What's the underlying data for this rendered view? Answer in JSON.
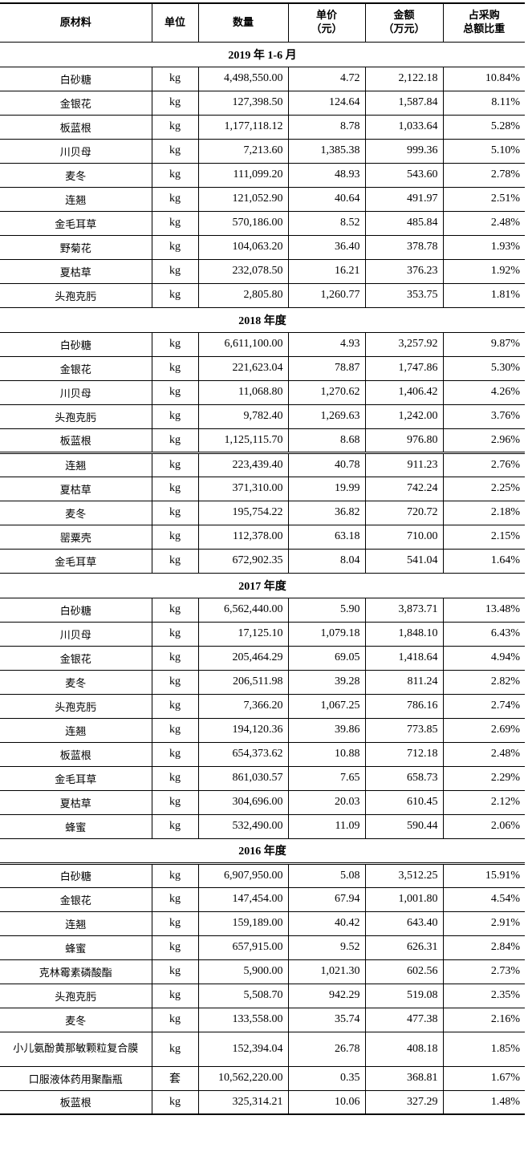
{
  "header": {
    "material": "原材料",
    "unit": "单位",
    "quantity": "数量",
    "price_line1": "单价",
    "price_line2": "（元）",
    "amount_line1": "金额",
    "amount_line2": "（万元）",
    "ratio_line1": "占采购",
    "ratio_line2": "总额比重"
  },
  "sections": [
    {
      "title": "2019 年 1-6 月",
      "rows": [
        {
          "name": "白砂糖",
          "unit": "kg",
          "quantity": "4,498,550.00",
          "price": "4.72",
          "amount": "2,122.18",
          "ratio": "10.84%"
        },
        {
          "name": "金银花",
          "unit": "kg",
          "quantity": "127,398.50",
          "price": "124.64",
          "amount": "1,587.84",
          "ratio": "8.11%"
        },
        {
          "name": "板蓝根",
          "unit": "kg",
          "quantity": "1,177,118.12",
          "price": "8.78",
          "amount": "1,033.64",
          "ratio": "5.28%"
        },
        {
          "name": "川贝母",
          "unit": "kg",
          "quantity": "7,213.60",
          "price": "1,385.38",
          "amount": "999.36",
          "ratio": "5.10%"
        },
        {
          "name": "麦冬",
          "unit": "kg",
          "quantity": "111,099.20",
          "price": "48.93",
          "amount": "543.60",
          "ratio": "2.78%"
        },
        {
          "name": "连翘",
          "unit": "kg",
          "quantity": "121,052.90",
          "price": "40.64",
          "amount": "491.97",
          "ratio": "2.51%"
        },
        {
          "name": "金毛耳草",
          "unit": "kg",
          "quantity": "570,186.00",
          "price": "8.52",
          "amount": "485.84",
          "ratio": "2.48%"
        },
        {
          "name": "野菊花",
          "unit": "kg",
          "quantity": "104,063.20",
          "price": "36.40",
          "amount": "378.78",
          "ratio": "1.93%"
        },
        {
          "name": "夏枯草",
          "unit": "kg",
          "quantity": "232,078.50",
          "price": "16.21",
          "amount": "376.23",
          "ratio": "1.92%"
        },
        {
          "name": "头孢克肟",
          "unit": "kg",
          "quantity": "2,805.80",
          "price": "1,260.77",
          "amount": "353.75",
          "ratio": "1.81%"
        }
      ]
    },
    {
      "title": "2018 年度",
      "rows": [
        {
          "name": "白砂糖",
          "unit": "kg",
          "quantity": "6,611,100.00",
          "price": "4.93",
          "amount": "3,257.92",
          "ratio": "9.87%"
        },
        {
          "name": "金银花",
          "unit": "kg",
          "quantity": "221,623.04",
          "price": "78.87",
          "amount": "1,747.86",
          "ratio": "5.30%"
        },
        {
          "name": "川贝母",
          "unit": "kg",
          "quantity": "11,068.80",
          "price": "1,270.62",
          "amount": "1,406.42",
          "ratio": "4.26%"
        },
        {
          "name": "头孢克肟",
          "unit": "kg",
          "quantity": "9,782.40",
          "price": "1,269.63",
          "amount": "1,242.00",
          "ratio": "3.76%"
        },
        {
          "name": "板蓝根",
          "unit": "kg",
          "quantity": "1,125,115.70",
          "price": "8.68",
          "amount": "976.80",
          "ratio": "2.96%"
        },
        {
          "name": "连翘",
          "unit": "kg",
          "quantity": "223,439.40",
          "price": "40.78",
          "amount": "911.23",
          "ratio": "2.76%"
        },
        {
          "name": "夏枯草",
          "unit": "kg",
          "quantity": "371,310.00",
          "price": "19.99",
          "amount": "742.24",
          "ratio": "2.25%"
        },
        {
          "name": "麦冬",
          "unit": "kg",
          "quantity": "195,754.22",
          "price": "36.82",
          "amount": "720.72",
          "ratio": "2.18%"
        },
        {
          "name": "罂粟壳",
          "unit": "kg",
          "quantity": "112,378.00",
          "price": "63.18",
          "amount": "710.00",
          "ratio": "2.15%"
        },
        {
          "name": "金毛耳草",
          "unit": "kg",
          "quantity": "672,902.35",
          "price": "8.04",
          "amount": "541.04",
          "ratio": "1.64%"
        }
      ]
    },
    {
      "title": "2017 年度",
      "rows": [
        {
          "name": "白砂糖",
          "unit": "kg",
          "quantity": "6,562,440.00",
          "price": "5.90",
          "amount": "3,873.71",
          "ratio": "13.48%"
        },
        {
          "name": "川贝母",
          "unit": "kg",
          "quantity": "17,125.10",
          "price": "1,079.18",
          "amount": "1,848.10",
          "ratio": "6.43%"
        },
        {
          "name": "金银花",
          "unit": "kg",
          "quantity": "205,464.29",
          "price": "69.05",
          "amount": "1,418.64",
          "ratio": "4.94%"
        },
        {
          "name": "麦冬",
          "unit": "kg",
          "quantity": "206,511.98",
          "price": "39.28",
          "amount": "811.24",
          "ratio": "2.82%"
        },
        {
          "name": "头孢克肟",
          "unit": "kg",
          "quantity": "7,366.20",
          "price": "1,067.25",
          "amount": "786.16",
          "ratio": "2.74%"
        },
        {
          "name": "连翘",
          "unit": "kg",
          "quantity": "194,120.36",
          "price": "39.86",
          "amount": "773.85",
          "ratio": "2.69%"
        },
        {
          "name": "板蓝根",
          "unit": "kg",
          "quantity": "654,373.62",
          "price": "10.88",
          "amount": "712.18",
          "ratio": "2.48%"
        },
        {
          "name": "金毛耳草",
          "unit": "kg",
          "quantity": "861,030.57",
          "price": "7.65",
          "amount": "658.73",
          "ratio": "2.29%"
        },
        {
          "name": "夏枯草",
          "unit": "kg",
          "quantity": "304,696.00",
          "price": "20.03",
          "amount": "610.45",
          "ratio": "2.12%"
        },
        {
          "name": "蜂蜜",
          "unit": "kg",
          "quantity": "532,490.00",
          "price": "11.09",
          "amount": "590.44",
          "ratio": "2.06%"
        }
      ]
    },
    {
      "title": "2016 年度",
      "rows": [
        {
          "name": "白砂糖",
          "unit": "kg",
          "quantity": "6,907,950.00",
          "price": "5.08",
          "amount": "3,512.25",
          "ratio": "15.91%"
        },
        {
          "name": "金银花",
          "unit": "kg",
          "quantity": "147,454.00",
          "price": "67.94",
          "amount": "1,001.80",
          "ratio": "4.54%"
        },
        {
          "name": "连翘",
          "unit": "kg",
          "quantity": "159,189.00",
          "price": "40.42",
          "amount": "643.40",
          "ratio": "2.91%"
        },
        {
          "name": "蜂蜜",
          "unit": "kg",
          "quantity": "657,915.00",
          "price": "9.52",
          "amount": "626.31",
          "ratio": "2.84%"
        },
        {
          "name": "克林霉素磷酸酯",
          "unit": "kg",
          "quantity": "5,900.00",
          "price": "1,021.30",
          "amount": "602.56",
          "ratio": "2.73%"
        },
        {
          "name": "头孢克肟",
          "unit": "kg",
          "quantity": "5,508.70",
          "price": "942.29",
          "amount": "519.08",
          "ratio": "2.35%"
        },
        {
          "name": "麦冬",
          "unit": "kg",
          "quantity": "133,558.00",
          "price": "35.74",
          "amount": "477.38",
          "ratio": "2.16%"
        },
        {
          "name": "小儿氨酚黄那敏颗粒复合膜",
          "unit": "kg",
          "quantity": "152,394.04",
          "price": "26.78",
          "amount": "408.18",
          "ratio": "1.85%"
        },
        {
          "name": "口服液体药用聚酯瓶",
          "unit": "套",
          "quantity": "10,562,220.00",
          "price": "0.35",
          "amount": "368.81",
          "ratio": "1.67%"
        },
        {
          "name": "板蓝根",
          "unit": "kg",
          "quantity": "325,314.21",
          "price": "10.06",
          "amount": "327.29",
          "ratio": "1.48%"
        }
      ]
    }
  ]
}
